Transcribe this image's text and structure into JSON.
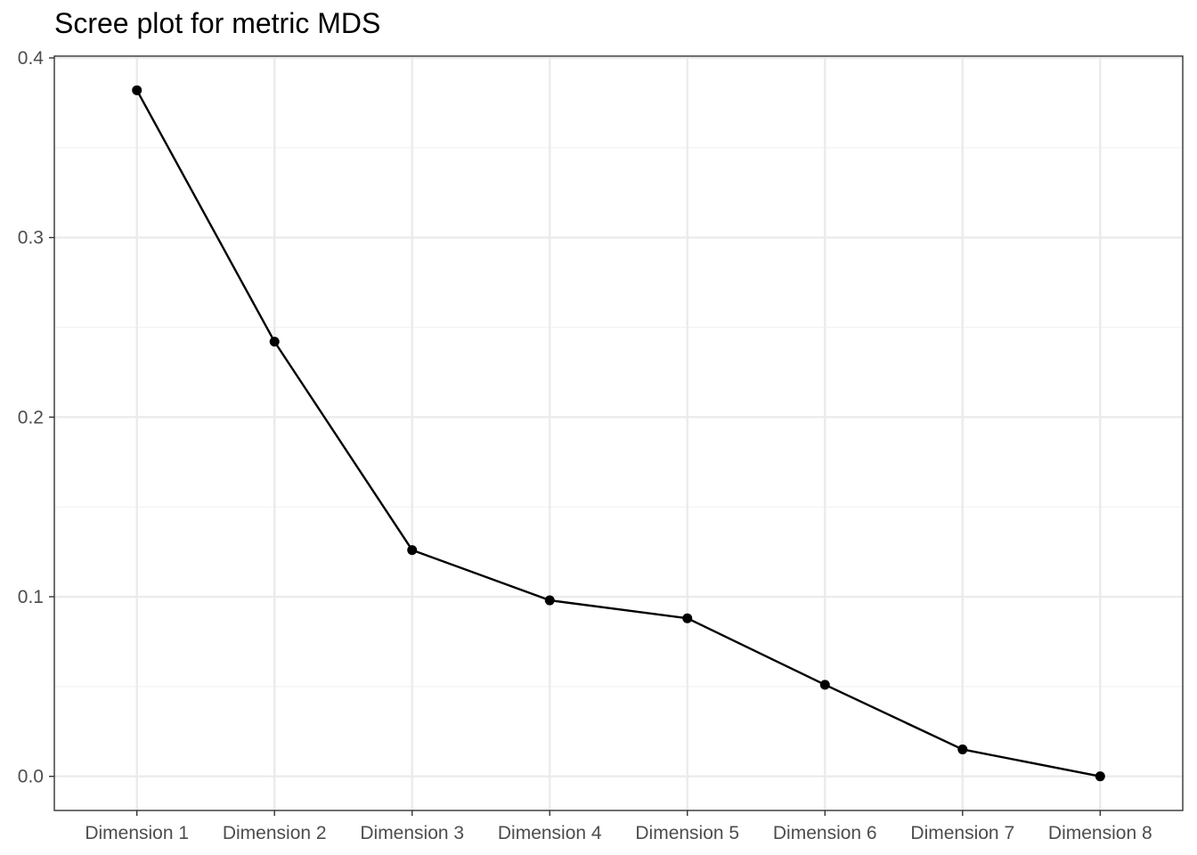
{
  "chart_data": {
    "type": "line",
    "title": "Scree plot for metric MDS",
    "xlabel": "",
    "ylabel": "",
    "categories": [
      "Dimension 1",
      "Dimension 2",
      "Dimension 3",
      "Dimension 4",
      "Dimension 5",
      "Dimension 6",
      "Dimension 7",
      "Dimension 8"
    ],
    "series": [
      {
        "values": [
          0.382,
          0.242,
          0.126,
          0.098,
          0.088,
          0.051,
          0.015,
          0.0
        ]
      }
    ],
    "ylim": [
      -0.019,
      0.401
    ],
    "yticks": [
      "0.0",
      "0.1",
      "0.2",
      "0.3",
      "0.4"
    ],
    "grid": true,
    "legend": "none",
    "colors": {
      "line": "#000000",
      "point": "#000000",
      "grid_major": "#ebebeb",
      "grid_minor": "#f2f2f2",
      "panel_border": "#333333",
      "tick_text": "#4d4d4d"
    }
  }
}
